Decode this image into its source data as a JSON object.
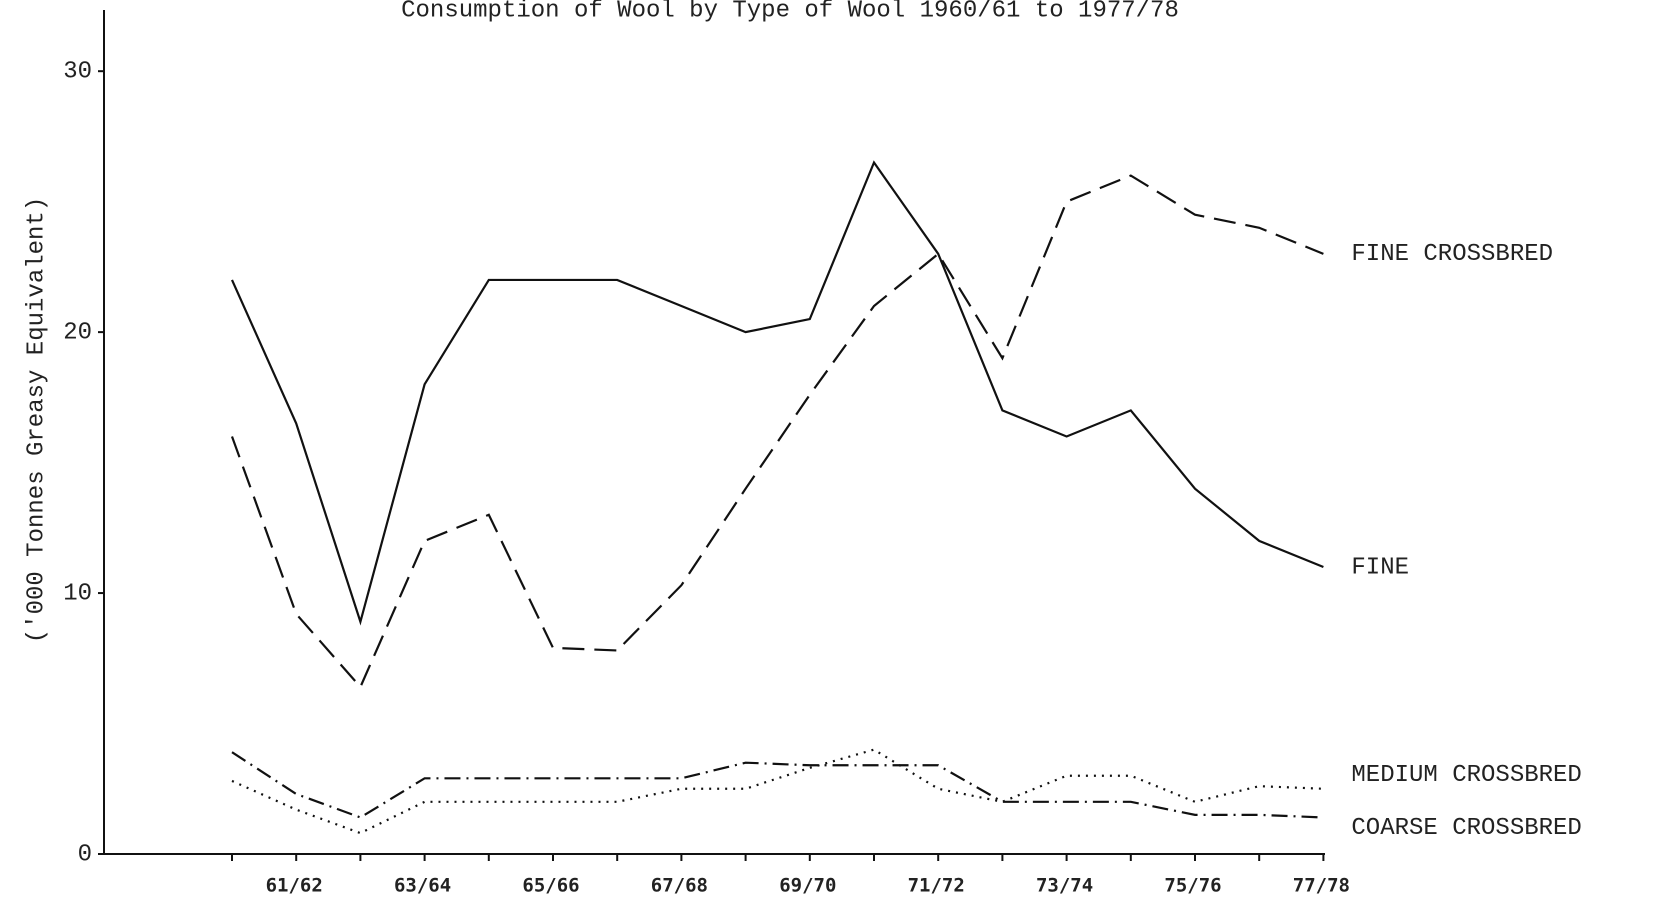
{
  "chart_data": {
    "type": "line",
    "title": "Consumption of Wool  by Type of Wool 1960/61 to 1977/78",
    "y_label": "('000 Tonnes Greasy Equivalent)",
    "categories": [
      null,
      "61/62",
      null,
      "63/64",
      null,
      "65/66",
      null,
      "67/68",
      null,
      "69/70",
      null,
      "71/72",
      null,
      "73/74",
      null,
      "75/76",
      null,
      "77/78"
    ],
    "series": [
      {
        "name": "FINE CROSSBRED",
        "color": "#111111",
        "line_style": "dashed",
        "values": [
          16,
          9.2,
          6.4,
          12,
          13,
          7.9,
          7.8,
          10.3,
          14,
          17.6,
          21,
          23,
          19,
          25,
          26,
          24.5,
          24,
          23
        ]
      },
      {
        "name": "FINE",
        "color": "#111111",
        "line_style": "solid",
        "values": [
          22,
          16.5,
          8.9,
          18,
          22,
          22,
          22,
          21,
          20,
          20.5,
          26.5,
          23,
          17,
          16,
          17,
          14,
          12,
          11
        ]
      },
      {
        "name": "MEDIUM CROSSBRED",
        "color": "#111111",
        "line_style": "dotted",
        "values": [
          2.8,
          1.7,
          0.8,
          2.0,
          2.0,
          2.0,
          2.0,
          2.5,
          2.5,
          3.3,
          4.0,
          2.5,
          2.0,
          3.0,
          3.0,
          2.0,
          2.6,
          2.5
        ]
      },
      {
        "name": "COARSE CROSSBRED",
        "color": "#111111",
        "line_style": "dashdot",
        "values": [
          3.9,
          2.3,
          1.4,
          2.9,
          2.9,
          2.9,
          2.9,
          2.9,
          3.5,
          3.4,
          3.4,
          3.4,
          2.0,
          2.0,
          2.0,
          1.5,
          1.5,
          1.4
        ]
      }
    ],
    "ylim": [
      0,
      32
    ],
    "yticks": [
      0,
      10,
      20,
      30
    ],
    "grid": false
  }
}
